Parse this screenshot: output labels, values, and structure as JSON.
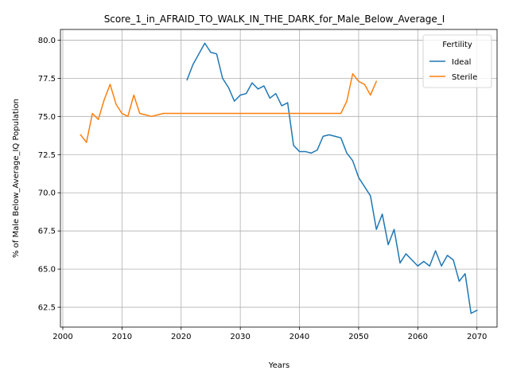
{
  "chart_data": {
    "type": "line",
    "title": "Score_1_in_AFRAID_TO_WALK_IN_THE_DARK_for_Male_Below_Average_I",
    "xlabel": "Years",
    "ylabel": "% of Male Below_Average_IQ Population",
    "xlim": [
      1999.6,
      2073.4
    ],
    "ylim": [
      61.2,
      80.7
    ],
    "xticks": [
      2000,
      2010,
      2020,
      2030,
      2040,
      2050,
      2060,
      2070
    ],
    "yticks": [
      62.5,
      65.0,
      67.5,
      70.0,
      72.5,
      75.0,
      77.5,
      80.0
    ],
    "ytick_labels": [
      "62.5",
      "65.0",
      "67.5",
      "70.0",
      "72.5",
      "75.0",
      "77.5",
      "80.0"
    ],
    "grid": true,
    "legend": {
      "title": "Fertility",
      "placement": "top-right"
    },
    "series": [
      {
        "name": "Ideal",
        "color": "#1f77b4",
        "x": [
          2021,
          2022,
          2023,
          2024,
          2025,
          2026,
          2027,
          2028,
          2029,
          2030,
          2031,
          2032,
          2033,
          2034,
          2035,
          2036,
          2037,
          2038,
          2039,
          2040,
          2041,
          2042,
          2043,
          2044,
          2045,
          2046,
          2047,
          2048,
          2049,
          2050,
          2051,
          2052,
          2053,
          2054,
          2055,
          2056,
          2057,
          2058,
          2059,
          2060,
          2061,
          2062,
          2063,
          2064,
          2065,
          2066,
          2067,
          2068,
          2069,
          2070
        ],
        "values": [
          77.4,
          78.4,
          79.1,
          79.8,
          79.2,
          79.1,
          77.5,
          76.9,
          76.0,
          76.4,
          76.5,
          77.2,
          76.8,
          77.0,
          76.2,
          76.5,
          75.7,
          75.9,
          73.1,
          72.7,
          72.7,
          72.6,
          72.8,
          73.7,
          73.8,
          73.7,
          73.6,
          72.6,
          72.1,
          71.0,
          70.4,
          69.8,
          67.6,
          68.6,
          66.6,
          67.6,
          65.4,
          66.0,
          65.6,
          65.2,
          65.5,
          65.2,
          66.2,
          65.2,
          65.9,
          65.6,
          64.2,
          64.7,
          62.1,
          62.3
        ]
      },
      {
        "name": "Sterile",
        "color": "#ff7f0e",
        "x": [
          2003,
          2004,
          2005,
          2006,
          2007,
          2008,
          2009,
          2010,
          2011,
          2012,
          2013,
          2014,
          2015,
          2016,
          2017,
          2018,
          2019,
          2020,
          2021,
          2022,
          2023,
          2024,
          2025,
          2026,
          2027,
          2028,
          2029,
          2030,
          2031,
          2032,
          2033,
          2034,
          2035,
          2036,
          2037,
          2038,
          2039,
          2040,
          2041,
          2042,
          2043,
          2044,
          2045,
          2046,
          2047,
          2048,
          2049,
          2050,
          2051,
          2052,
          2053
        ],
        "values": [
          73.8,
          73.3,
          75.2,
          74.8,
          76.1,
          77.1,
          75.8,
          75.2,
          75.0,
          76.4,
          75.2,
          75.1,
          75.0,
          75.1,
          75.2,
          75.2,
          75.2,
          75.2,
          75.2,
          75.2,
          75.2,
          75.2,
          75.2,
          75.2,
          75.2,
          75.2,
          75.2,
          75.2,
          75.2,
          75.2,
          75.2,
          75.2,
          75.2,
          75.2,
          75.2,
          75.2,
          75.2,
          75.2,
          75.2,
          75.2,
          75.2,
          75.2,
          75.2,
          75.2,
          75.2,
          76.0,
          77.8,
          77.3,
          77.1,
          76.4,
          77.3
        ]
      }
    ]
  }
}
